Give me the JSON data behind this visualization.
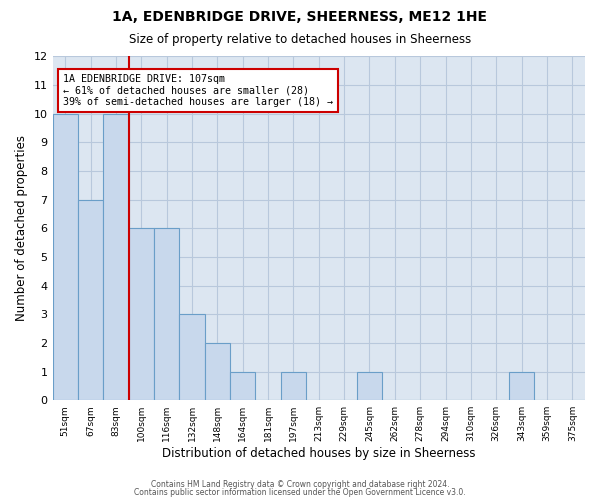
{
  "title": "1A, EDENBRIDGE DRIVE, SHEERNESS, ME12 1HE",
  "subtitle": "Size of property relative to detached houses in Sheerness",
  "xlabel": "Distribution of detached houses by size in Sheerness",
  "ylabel": "Number of detached properties",
  "bin_labels": [
    "51sqm",
    "67sqm",
    "83sqm",
    "100sqm",
    "116sqm",
    "132sqm",
    "148sqm",
    "164sqm",
    "181sqm",
    "197sqm",
    "213sqm",
    "229sqm",
    "245sqm",
    "262sqm",
    "278sqm",
    "294sqm",
    "310sqm",
    "326sqm",
    "343sqm",
    "359sqm",
    "375sqm"
  ],
  "bar_values": [
    10,
    7,
    10,
    6,
    6,
    3,
    2,
    1,
    0,
    1,
    0,
    0,
    1,
    0,
    0,
    0,
    0,
    0,
    1,
    0,
    0
  ],
  "bar_color": "#c8d8ec",
  "bar_edge_color": "#6a9ec8",
  "vline_color": "#cc0000",
  "vline_position": 3,
  "ylim": [
    0,
    12
  ],
  "yticks": [
    0,
    1,
    2,
    3,
    4,
    5,
    6,
    7,
    8,
    9,
    10,
    11,
    12
  ],
  "annotation_title": "1A EDENBRIDGE DRIVE: 107sqm",
  "annotation_line1": "← 61% of detached houses are smaller (28)",
  "annotation_line2": "39% of semi-detached houses are larger (18) →",
  "annotation_box_color": "#cc0000",
  "grid_color": "#b8c8dc",
  "background_color": "#dce6f1",
  "footer_line1": "Contains HM Land Registry data © Crown copyright and database right 2024.",
  "footer_line2": "Contains public sector information licensed under the Open Government Licence v3.0."
}
